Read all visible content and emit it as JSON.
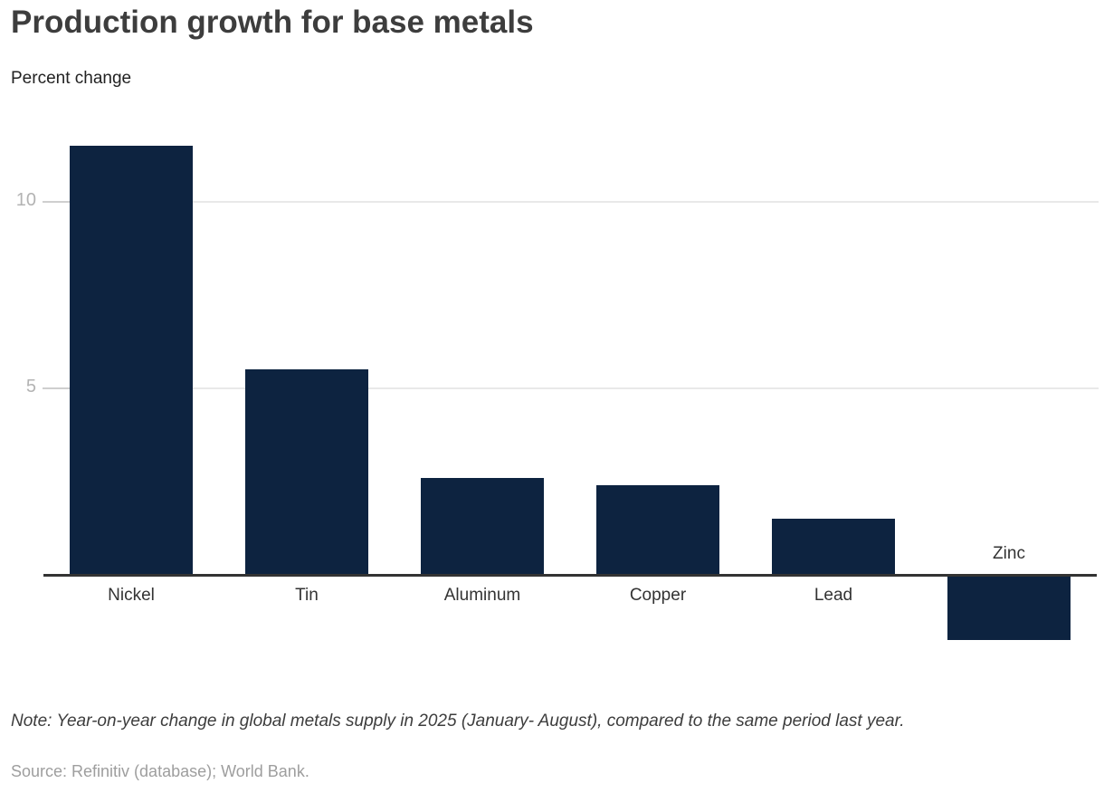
{
  "header": {
    "title": "Production growth for base metals",
    "subtitle": "Percent change"
  },
  "footer": {
    "note": "Note: Year-on-year change in global metals supply in 2025 (January- August), compared to the same period last year.",
    "source": "Source: Refinitiv (database); World Bank."
  },
  "chart_data": {
    "type": "bar",
    "title": "Production growth for base metals",
    "subtitle": "Percent change",
    "categories": [
      "Nickel",
      "Tin",
      "Aluminum",
      "Copper",
      "Lead",
      "Zinc"
    ],
    "values": [
      11.5,
      5.5,
      2.6,
      2.4,
      1.5,
      -1.7
    ],
    "xlabel": "",
    "ylabel": "Percent change",
    "yticks": [
      5,
      10
    ],
    "ylim": [
      -2.3,
      12.3
    ],
    "grid": true,
    "legend": false,
    "colors": {
      "bar": "#0d2340",
      "axis": "#333333",
      "gridline": "#e9e9e9",
      "tick_dash": "#cfcfcf",
      "tick_label": "#b3b3b3",
      "category_label": "#333333",
      "title": "#3d3d3d",
      "subtitle": "#222222",
      "note": "#3d3d3d",
      "source": "#9e9e9e"
    }
  }
}
